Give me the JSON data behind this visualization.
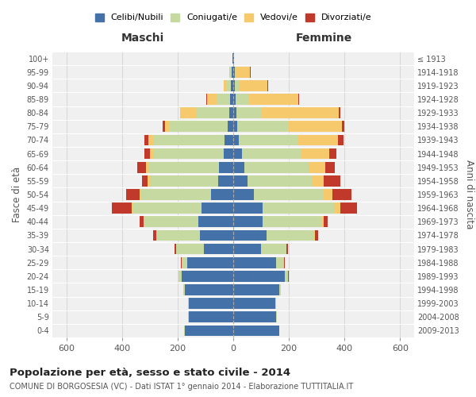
{
  "age_groups": [
    "0-4",
    "5-9",
    "10-14",
    "15-19",
    "20-24",
    "25-29",
    "30-34",
    "35-39",
    "40-44",
    "45-49",
    "50-54",
    "55-59",
    "60-64",
    "65-69",
    "70-74",
    "75-79",
    "80-84",
    "85-89",
    "90-94",
    "95-99",
    "100+"
  ],
  "birth_years": [
    "2009-2013",
    "2004-2008",
    "1999-2003",
    "1994-1998",
    "1989-1993",
    "1984-1988",
    "1979-1983",
    "1974-1978",
    "1969-1973",
    "1964-1968",
    "1959-1963",
    "1954-1958",
    "1949-1953",
    "1944-1948",
    "1939-1943",
    "1934-1938",
    "1929-1933",
    "1924-1928",
    "1919-1923",
    "1914-1918",
    "≤ 1913"
  ],
  "male": {
    "celibi": [
      175,
      160,
      160,
      175,
      185,
      165,
      105,
      120,
      125,
      115,
      80,
      55,
      50,
      35,
      30,
      20,
      15,
      10,
      8,
      5,
      2
    ],
    "coniugati": [
      1,
      2,
      3,
      5,
      10,
      20,
      100,
      155,
      195,
      245,
      250,
      245,
      255,
      250,
      255,
      210,
      120,
      50,
      18,
      5,
      0
    ],
    "vedovi": [
      0,
      0,
      0,
      0,
      1,
      1,
      1,
      2,
      2,
      5,
      5,
      8,
      10,
      15,
      20,
      15,
      55,
      35,
      8,
      5,
      0
    ],
    "divorziati": [
      0,
      0,
      0,
      0,
      1,
      2,
      5,
      10,
      15,
      70,
      50,
      20,
      30,
      20,
      15,
      10,
      2,
      2,
      1,
      0,
      0
    ]
  },
  "female": {
    "nubili": [
      165,
      155,
      150,
      165,
      185,
      155,
      100,
      120,
      105,
      105,
      75,
      50,
      40,
      30,
      20,
      15,
      10,
      8,
      5,
      5,
      2
    ],
    "coniugate": [
      1,
      2,
      3,
      5,
      12,
      25,
      90,
      170,
      215,
      260,
      250,
      235,
      230,
      215,
      215,
      185,
      90,
      50,
      18,
      5,
      0
    ],
    "vedove": [
      0,
      0,
      0,
      0,
      1,
      2,
      2,
      5,
      5,
      20,
      30,
      40,
      60,
      100,
      140,
      190,
      280,
      175,
      100,
      50,
      0
    ],
    "divorziate": [
      0,
      0,
      0,
      0,
      1,
      2,
      5,
      10,
      15,
      60,
      70,
      60,
      35,
      25,
      20,
      10,
      5,
      3,
      2,
      2,
      2
    ]
  },
  "colors": {
    "celibi": "#4472a8",
    "coniugati": "#c5d9a0",
    "vedovi": "#f5c96c",
    "divorziati": "#c0392b"
  },
  "xlim": 650,
  "title": "Popolazione per età, sesso e stato civile - 2014",
  "subtitle": "COMUNE DI BORGOSESIA (VC) - Dati ISTAT 1° gennaio 2014 - Elaborazione TUTTITALIA.IT",
  "ylabel_left": "Fasce di età",
  "ylabel_right": "Anni di nascita",
  "xlabel_left": "Maschi",
  "xlabel_right": "Femmine",
  "legend_labels": [
    "Celibi/Nubili",
    "Coniugati/e",
    "Vedovi/e",
    "Divorziati/e"
  ],
  "bg_color": "#ffffff",
  "plot_bg": "#f0f0f0"
}
